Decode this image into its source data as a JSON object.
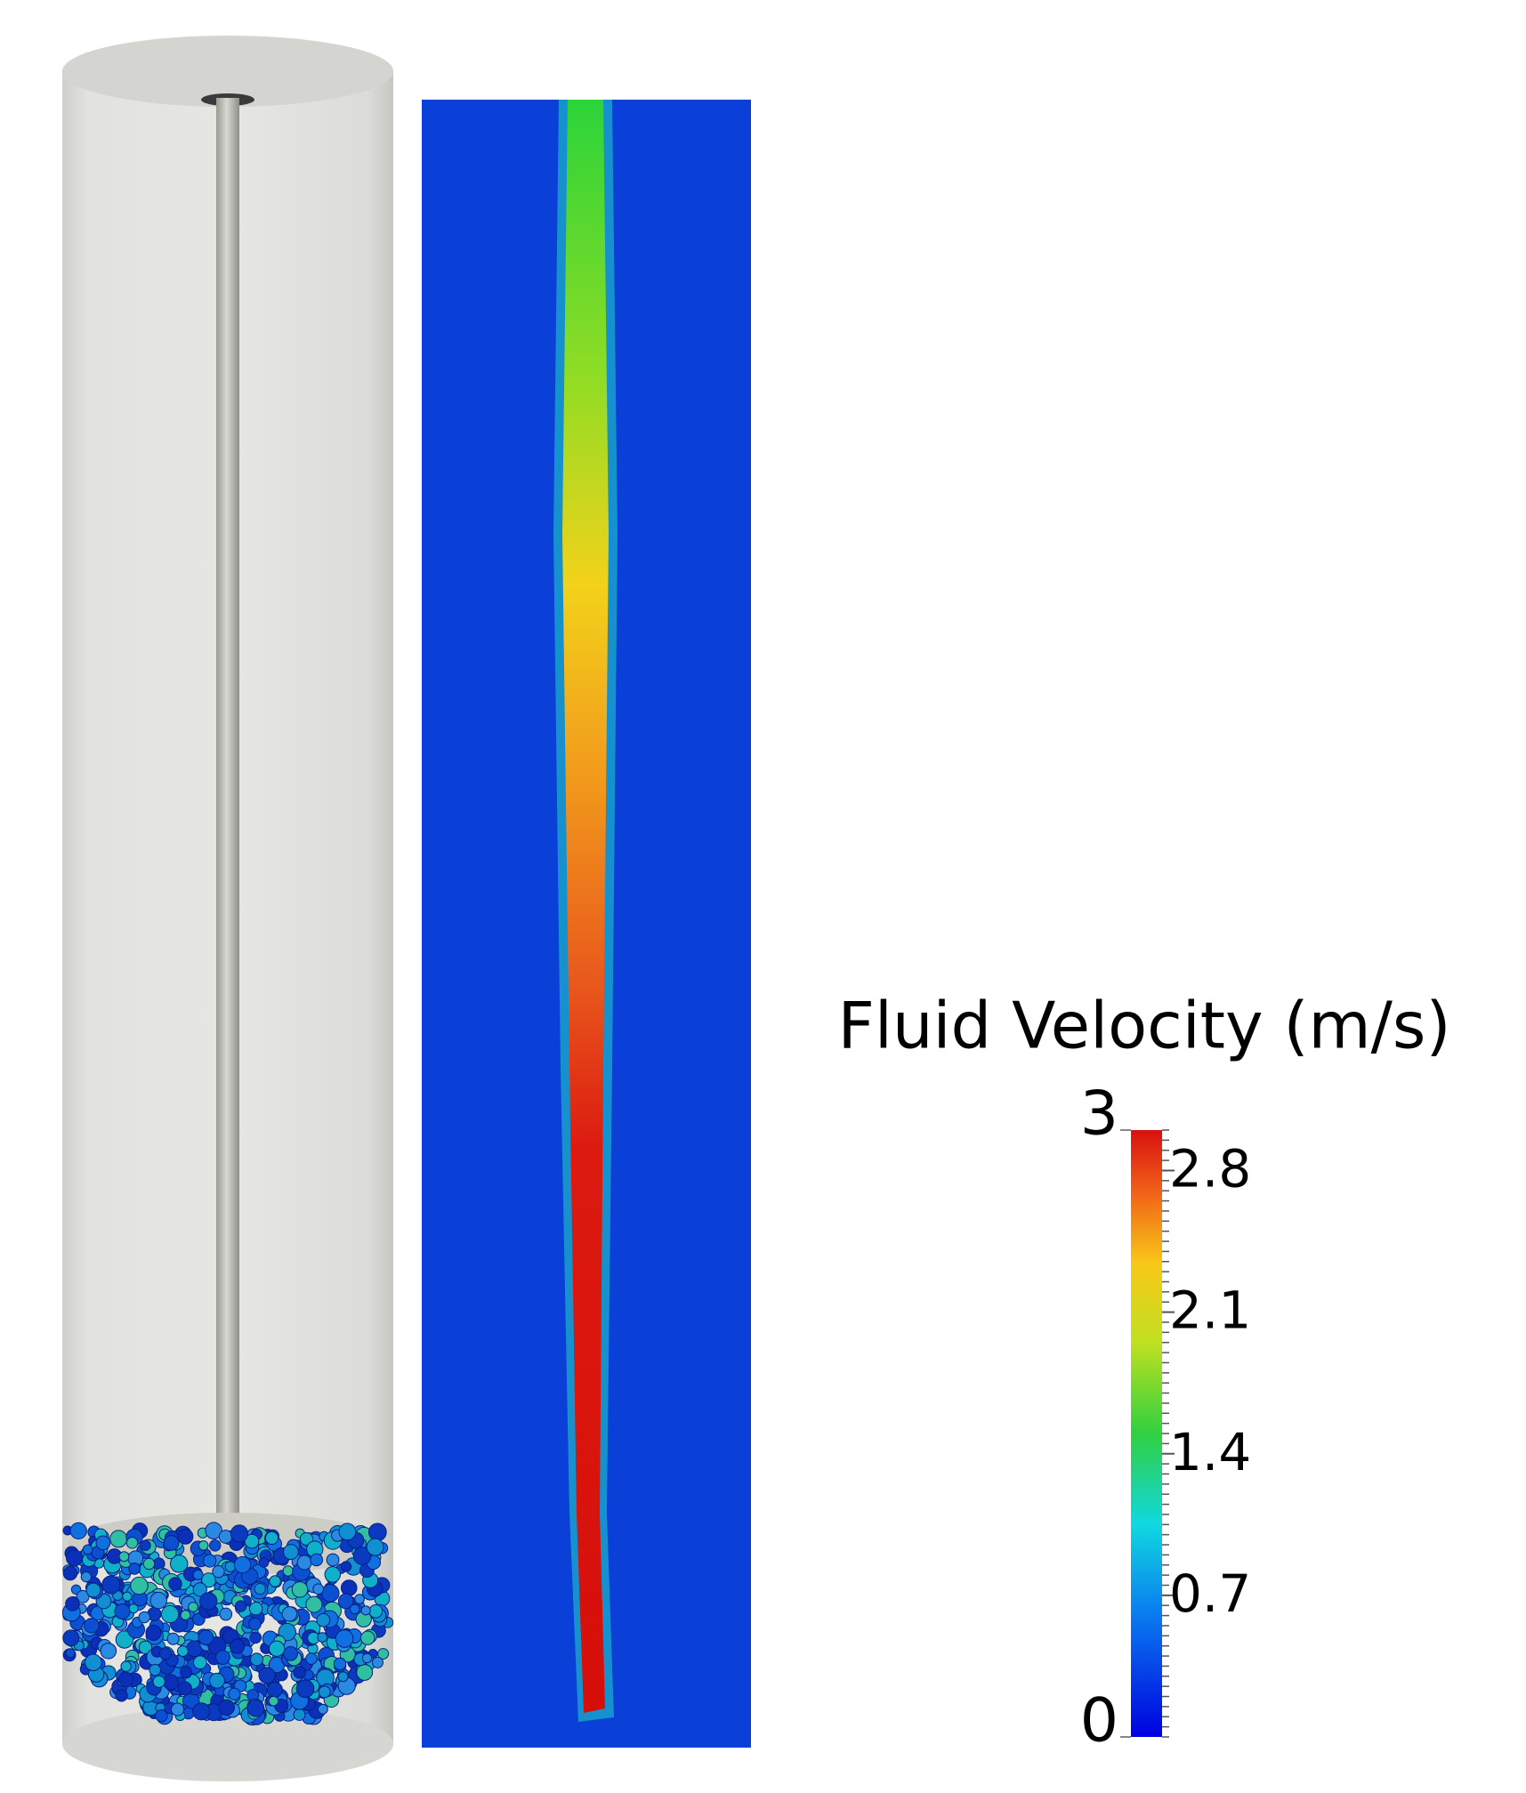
{
  "colorbar": {
    "title": "Fluid Velocity (m/s)",
    "range": [
      0,
      3
    ],
    "ticks": [
      3,
      2.8,
      2.1,
      1.4,
      0.7,
      0
    ]
  }
}
